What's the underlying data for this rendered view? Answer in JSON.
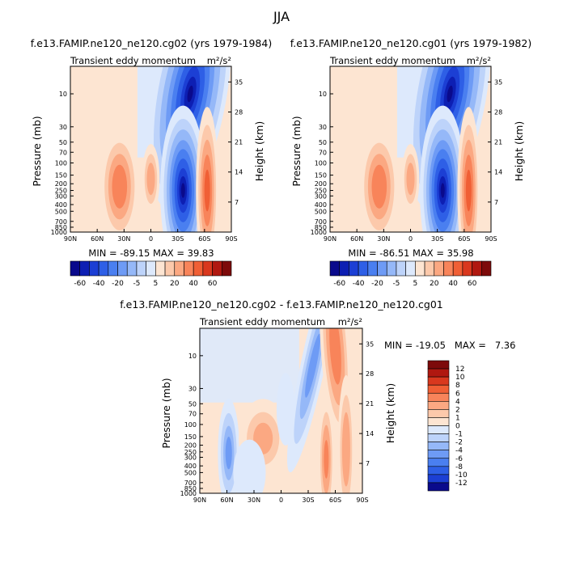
{
  "figure": {
    "title": "JJA"
  },
  "chart_data": [
    {
      "type": "heatmap",
      "panel": "top-left",
      "title": "f.e13.FAMIP.ne120_ne120.cg02 (yrs 1979-1984)",
      "subtitle_left": "Transient eddy momentum",
      "units": "m²/s²",
      "ylabel": "Pressure (mb)",
      "ylabel_right": "Height (km)",
      "x_ticks": [
        "90N",
        "60N",
        "30N",
        "0",
        "30S",
        "60S",
        "90S"
      ],
      "y_ticks": [
        "10",
        "30",
        "50",
        "70",
        "100",
        "150",
        "200",
        "250",
        "300",
        "400",
        "500",
        "700",
        "850",
        "1000"
      ],
      "y_ticks_right": [
        "35",
        "28",
        "21",
        "14",
        "7"
      ],
      "stats": "MIN = -89.15   MAX =  39.83",
      "min": -89.15,
      "max": 39.83,
      "features": [
        {
          "lat": 36,
          "p": 220,
          "value": 28
        },
        {
          "lat": 0,
          "p": 170,
          "value": 12
        },
        {
          "lat": -35,
          "p": 250,
          "value": -88
        },
        {
          "lat": -48,
          "p": 12,
          "value": -70
        },
        {
          "lat": -62,
          "p": 250,
          "value": 34
        }
      ]
    },
    {
      "type": "heatmap",
      "panel": "top-right",
      "title": "f.e13.FAMIP.ne120_ne120.cg01 (yrs 1979-1982)",
      "subtitle_left": "Transient eddy momentum",
      "units": "m²/s²",
      "ylabel": "Pressure (mb)",
      "ylabel_right": "Height (km)",
      "x_ticks": [
        "90N",
        "60N",
        "30N",
        "0",
        "30S",
        "60S",
        "90S"
      ],
      "y_ticks": [
        "10",
        "30",
        "50",
        "70",
        "100",
        "150",
        "200",
        "250",
        "300",
        "400",
        "500",
        "700",
        "850",
        "1000"
      ],
      "y_ticks_right": [
        "35",
        "28",
        "21",
        "14",
        "7"
      ],
      "stats": "MIN = -86.51   MAX =  35.98",
      "min": -86.51,
      "max": 35.98,
      "features": [
        {
          "lat": 36,
          "p": 220,
          "value": 26
        },
        {
          "lat": 0,
          "p": 170,
          "value": 14
        },
        {
          "lat": -35,
          "p": 250,
          "value": -85
        },
        {
          "lat": -48,
          "p": 12,
          "value": -72
        },
        {
          "lat": -65,
          "p": 250,
          "value": 30
        }
      ]
    },
    {
      "type": "heatmap",
      "panel": "bottom",
      "title": "f.e13.FAMIP.ne120_ne120.cg02 - f.e13.FAMIP.ne120_ne120.cg01",
      "subtitle_left": "Transient eddy momentum",
      "units": "m²/s²",
      "ylabel": "Pressure (mb)",
      "ylabel_right": "Height (km)",
      "x_ticks": [
        "90N",
        "60N",
        "30N",
        "0",
        "30S",
        "60S",
        "90S"
      ],
      "y_ticks": [
        "10",
        "30",
        "50",
        "70",
        "100",
        "150",
        "200",
        "250",
        "300",
        "400",
        "500",
        "700",
        "850",
        "1000"
      ],
      "y_ticks_right": [
        "35",
        "28",
        "21",
        "14",
        "7"
      ],
      "stats": "MIN = -19.05   MAX =   7.36",
      "min": -19.05,
      "max": 7.36,
      "features": [
        {
          "lat": 58,
          "p": 250,
          "value": -10
        },
        {
          "lat": 20,
          "p": 170,
          "value": 4
        },
        {
          "lat": -55,
          "p": 10,
          "value": 7
        },
        {
          "lat": -33,
          "p": 12,
          "value": -6
        },
        {
          "lat": -50,
          "p": 300,
          "value": 6
        },
        {
          "lat": -70,
          "p": 230,
          "value": 5
        }
      ]
    }
  ],
  "colorbar_top": {
    "labels": [
      "-60",
      "-40",
      "-20",
      "-5",
      "5",
      "20",
      "40",
      "60"
    ],
    "colors": [
      "#0a0a8c",
      "#0d1fb3",
      "#1c3fd4",
      "#2e5fe6",
      "#4a7ff0",
      "#6e9bf5",
      "#95b8f8",
      "#bdd3fa",
      "#dde9fc",
      "#fde5d2",
      "#fcc9ab",
      "#fba882",
      "#f8845a",
      "#f05f35",
      "#d9381e",
      "#b01810",
      "#7d0a0a"
    ]
  },
  "colorbar_diff": {
    "labels": [
      "12",
      "10",
      "8",
      "6",
      "4",
      "2",
      "1",
      "0",
      "-1",
      "-2",
      "-4",
      "-6",
      "-8",
      "-10",
      "-12"
    ],
    "colors": [
      "#7d0a0a",
      "#b01810",
      "#d9381e",
      "#f05f35",
      "#f8845a",
      "#fba882",
      "#fcc9ab",
      "#fde5d2",
      "#dde9fc",
      "#bdd3fa",
      "#95b8f8",
      "#6e9bf5",
      "#4a7ff0",
      "#2e5fe6",
      "#1c3fd4",
      "#0a0a8c"
    ]
  }
}
